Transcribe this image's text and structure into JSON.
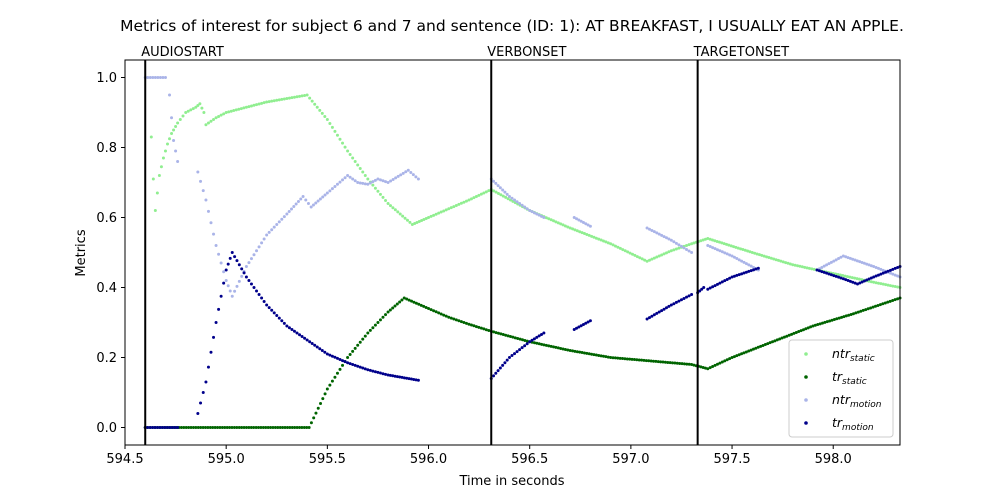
{
  "chart_data": {
    "type": "scatter",
    "title": "Metrics of interest for subject 6 and 7 and sentence (ID: 1):  AT BREAKFAST, I USUALLY EAT AN APPLE.",
    "xlabel": "Time in seconds",
    "ylabel": "Metrics",
    "xlim": [
      594.5,
      598.33
    ],
    "ylim": [
      -0.05,
      1.05
    ],
    "xticks": [
      "594.5",
      "595.0",
      "595.5",
      "596.0",
      "596.5",
      "597.0",
      "597.5",
      "598.0"
    ],
    "yticks": [
      "0.0",
      "0.2",
      "0.4",
      "0.6",
      "0.8",
      "1.0"
    ],
    "grid": false,
    "legend_position": "lower right",
    "events": [
      {
        "label": "AUDIOSTART",
        "x": 594.6
      },
      {
        "label": "VERBONSET",
        "x": 596.31
      },
      {
        "label": "TARGETONSET",
        "x": 597.33
      }
    ],
    "series": [
      {
        "name": "ntr_static",
        "legend_main": "ntr",
        "legend_sub": "static",
        "color": "#90ee90",
        "segments": [
          [
            [
              594.63,
              0.83
            ],
            [
              594.64,
              0.71
            ],
            [
              594.65,
              0.62
            ],
            [
              594.67,
              0.72
            ],
            [
              594.69,
              0.77
            ],
            [
              594.71,
              0.81
            ],
            [
              594.73,
              0.84
            ],
            [
              594.76,
              0.87
            ],
            [
              594.8,
              0.9
            ],
            [
              594.85,
              0.915
            ],
            [
              594.87,
              0.925
            ],
            [
              594.89,
              0.9
            ],
            [
              594.9,
              0.865
            ],
            [
              594.95,
              0.885
            ],
            [
              595.0,
              0.9
            ],
            [
              595.1,
              0.915
            ],
            [
              595.2,
              0.93
            ],
            [
              595.3,
              0.94
            ],
            [
              595.4,
              0.95
            ],
            [
              595.5,
              0.88
            ],
            [
              595.6,
              0.79
            ],
            [
              595.7,
              0.71
            ],
            [
              595.8,
              0.64
            ],
            [
              595.92,
              0.58
            ],
            [
              596.0,
              0.6
            ],
            [
              596.1,
              0.625
            ],
            [
              596.2,
              0.65
            ],
            [
              596.31,
              0.68
            ],
            [
              596.5,
              0.62
            ],
            [
              596.7,
              0.57
            ],
            [
              596.9,
              0.525
            ],
            [
              597.08,
              0.475
            ],
            [
              597.2,
              0.505
            ],
            [
              597.3,
              0.525
            ],
            [
              597.38,
              0.54
            ],
            [
              597.6,
              0.5
            ],
            [
              597.8,
              0.465
            ],
            [
              598.0,
              0.44
            ],
            [
              598.2,
              0.415
            ],
            [
              598.33,
              0.4
            ]
          ]
        ]
      },
      {
        "name": "tr_static",
        "legend_main": "tr",
        "legend_sub": "static",
        "color": "#006400",
        "segments": [
          [
            [
              594.6,
              0.0
            ],
            [
              595.41,
              0.0
            ],
            [
              595.5,
              0.11
            ],
            [
              595.6,
              0.2
            ],
            [
              595.7,
              0.27
            ],
            [
              595.8,
              0.33
            ],
            [
              595.88,
              0.37
            ],
            [
              596.0,
              0.34
            ],
            [
              596.1,
              0.315
            ],
            [
              596.2,
              0.295
            ],
            [
              596.31,
              0.275
            ],
            [
              596.5,
              0.245
            ],
            [
              596.7,
              0.22
            ],
            [
              596.9,
              0.2
            ],
            [
              597.1,
              0.19
            ],
            [
              597.3,
              0.18
            ],
            [
              597.38,
              0.168
            ],
            [
              597.5,
              0.2
            ],
            [
              597.7,
              0.245
            ],
            [
              597.9,
              0.29
            ],
            [
              598.1,
              0.325
            ],
            [
              598.33,
              0.37
            ]
          ]
        ]
      },
      {
        "name": "ntr_motion",
        "legend_main": "ntr",
        "legend_sub": "motion",
        "color": "#aab4e8",
        "segments": [
          [
            [
              594.6,
              1.0
            ],
            [
              594.7,
              1.0
            ]
          ],
          [
            [
              594.72,
              0.95
            ],
            [
              594.74,
              0.82
            ],
            [
              594.76,
              0.76
            ]
          ],
          [
            [
              594.86,
              0.73
            ],
            [
              594.9,
              0.65
            ],
            [
              594.95,
              0.52
            ],
            [
              595.0,
              0.42
            ],
            [
              595.03,
              0.375
            ],
            [
              595.1,
              0.46
            ],
            [
              595.2,
              0.55
            ],
            [
              595.3,
              0.61
            ],
            [
              595.38,
              0.66
            ],
            [
              595.42,
              0.63
            ],
            [
              595.5,
              0.67
            ],
            [
              595.6,
              0.72
            ],
            [
              595.65,
              0.7
            ],
            [
              595.7,
              0.695
            ],
            [
              595.75,
              0.71
            ],
            [
              595.8,
              0.7
            ],
            [
              595.9,
              0.735
            ],
            [
              595.95,
              0.71
            ]
          ],
          [
            [
              596.31,
              0.71
            ],
            [
              596.4,
              0.66
            ],
            [
              596.5,
              0.62
            ],
            [
              596.57,
              0.6
            ]
          ],
          [
            [
              596.72,
              0.6
            ],
            [
              596.8,
              0.575
            ]
          ],
          [
            [
              597.08,
              0.57
            ],
            [
              597.2,
              0.535
            ],
            [
              597.3,
              0.5
            ]
          ],
          [
            [
              597.38,
              0.52
            ],
            [
              597.5,
              0.49
            ],
            [
              597.63,
              0.45
            ]
          ],
          [
            [
              597.92,
              0.45
            ],
            [
              598.05,
              0.49
            ],
            [
              598.2,
              0.46
            ],
            [
              598.33,
              0.43
            ]
          ]
        ]
      },
      {
        "name": "tr_motion",
        "legend_main": "tr",
        "legend_sub": "motion",
        "color": "#00008b",
        "segments": [
          [
            [
              594.6,
              0.0
            ],
            [
              594.76,
              0.0
            ]
          ],
          [
            [
              594.86,
              0.04
            ],
            [
              594.9,
              0.13
            ],
            [
              594.95,
              0.3
            ],
            [
              595.0,
              0.45
            ],
            [
              595.03,
              0.5
            ],
            [
              595.1,
              0.43
            ],
            [
              595.2,
              0.35
            ],
            [
              595.3,
              0.29
            ],
            [
              595.4,
              0.25
            ],
            [
              595.5,
              0.21
            ],
            [
              595.6,
              0.185
            ],
            [
              595.7,
              0.165
            ],
            [
              595.8,
              0.15
            ],
            [
              595.95,
              0.135
            ]
          ],
          [
            [
              596.31,
              0.14
            ],
            [
              596.4,
              0.2
            ],
            [
              596.5,
              0.245
            ],
            [
              596.57,
              0.27
            ]
          ],
          [
            [
              596.72,
              0.28
            ],
            [
              596.8,
              0.305
            ]
          ],
          [
            [
              597.08,
              0.31
            ],
            [
              597.2,
              0.35
            ],
            [
              597.3,
              0.38
            ]
          ],
          [
            [
              597.33,
              0.385
            ],
            [
              597.36,
              0.4
            ]
          ],
          [
            [
              597.38,
              0.395
            ],
            [
              597.5,
              0.43
            ],
            [
              597.63,
              0.455
            ]
          ],
          [
            [
              597.92,
              0.45
            ],
            [
              598.05,
              0.425
            ],
            [
              598.12,
              0.41
            ],
            [
              598.2,
              0.43
            ],
            [
              598.33,
              0.46
            ]
          ]
        ]
      }
    ]
  }
}
